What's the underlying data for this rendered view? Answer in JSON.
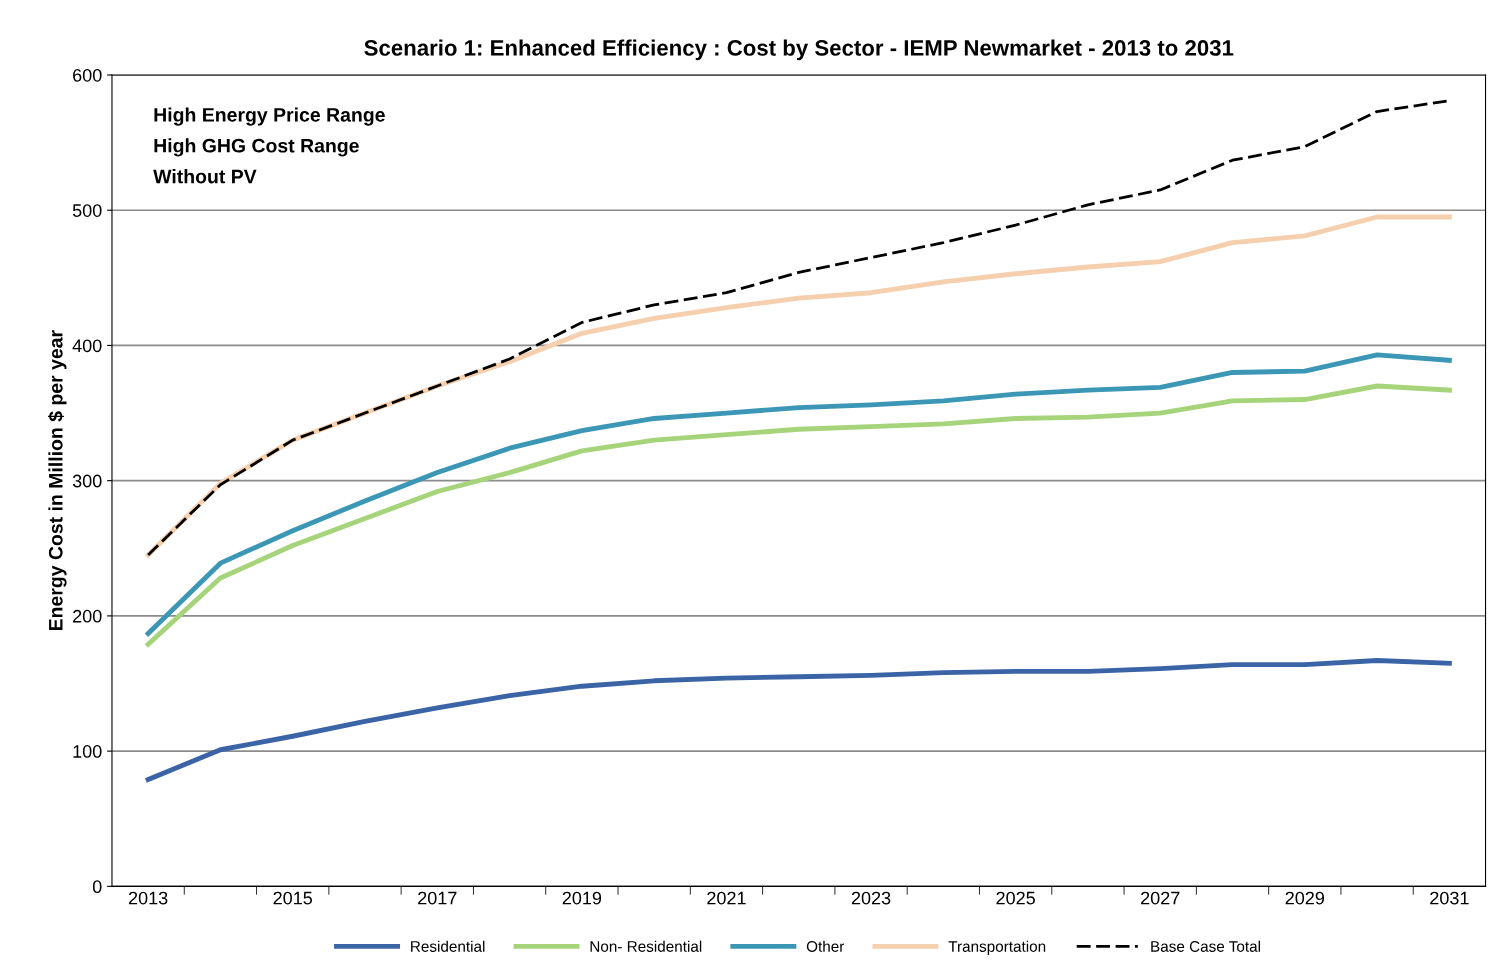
{
  "chart_data": {
    "type": "line",
    "title": "Scenario 1: Enhanced Efficiency : Cost by Sector - IEMP Newmarket - 2013 to 2031",
    "ylabel": "Energy Cost in Million $ per year",
    "categories": [
      "2013",
      null,
      "2015",
      null,
      "2017",
      null,
      "2019",
      null,
      "2021",
      null,
      "2023",
      null,
      "2025",
      null,
      "2027",
      null,
      "2029",
      null,
      "2031"
    ],
    "series": [
      {
        "name": "Residential",
        "color": "#3a64a6",
        "values": [
          79,
          101,
          111,
          122,
          132,
          141,
          148,
          152,
          154,
          155,
          156,
          158,
          159,
          159,
          161,
          164,
          164,
          167,
          165
        ]
      },
      {
        "name": "Non- Residential",
        "color": "#a6d47a",
        "values": [
          179,
          228,
          252,
          272,
          292,
          306,
          322,
          330,
          334,
          338,
          340,
          342,
          346,
          347,
          350,
          359,
          360,
          370,
          367
        ]
      },
      {
        "name": "Other",
        "color": "#3b97b5",
        "values": [
          187,
          239,
          263,
          285,
          306,
          324,
          337,
          346,
          350,
          354,
          356,
          359,
          364,
          367,
          369,
          380,
          381,
          393,
          389
        ]
      },
      {
        "name": "Transportation",
        "color": "#f6cfae",
        "values": [
          245,
          298,
          330,
          350,
          370,
          388,
          409,
          420,
          428,
          435,
          439,
          447,
          453,
          458,
          462,
          476,
          481,
          495,
          495
        ]
      },
      {
        "name": "Base Case Total",
        "color": "#000000",
        "line_style": "dashed",
        "values": [
          245,
          297,
          330,
          350,
          370,
          390,
          417,
          430,
          439,
          454,
          465,
          476,
          489,
          504,
          515,
          537,
          547,
          573,
          581
        ]
      }
    ],
    "ylim": [
      0,
      600
    ],
    "yticks": [
      0,
      100,
      200,
      300,
      400,
      500,
      600
    ],
    "grid": "y",
    "legend": "bottom",
    "marker": "none",
    "annotations": [
      "High Energy Price Range",
      "High GHG Cost Range",
      "Without PV"
    ]
  }
}
